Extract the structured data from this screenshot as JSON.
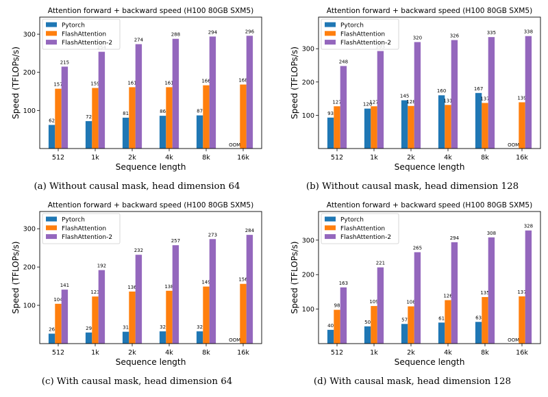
{
  "figure": {
    "series_colors": [
      "#1f77b4",
      "#ff7f0e",
      "#9467bd"
    ],
    "oom_label": "OOM"
  },
  "chart_data": [
    {
      "type": "bar",
      "title": "Attention forward + backward speed (H100 80GB SXM5)",
      "caption": "(a) Without causal mask, head dimension 64",
      "xlabel": "Sequence length",
      "ylabel": "Speed (TFLOPs/s)",
      "categories": [
        "512",
        "1k",
        "2k",
        "4k",
        "8k",
        "16k"
      ],
      "ylim": [
        0,
        345
      ],
      "yticks": [
        100,
        200,
        300
      ],
      "legend_position": "top-left",
      "series": [
        {
          "name": "Pytorch",
          "values": [
            62,
            72,
            81,
            86,
            87,
            null
          ]
        },
        {
          "name": "FlashAttention",
          "values": [
            157,
            159,
            161,
            161,
            166,
            168
          ]
        },
        {
          "name": "FlashAttention-2",
          "values": [
            215,
            254,
            274,
            288,
            294,
            296
          ]
        }
      ]
    },
    {
      "type": "bar",
      "title": "Attention forward + backward speed (H100 80GB SXM5)",
      "caption": "(b) Without causal mask, head dimension 128",
      "xlabel": "Sequence length",
      "ylabel": "Speed (TFLOPs/s)",
      "categories": [
        "512",
        "1k",
        "2k",
        "4k",
        "8k",
        "16k"
      ],
      "ylim": [
        0,
        395
      ],
      "yticks": [
        100,
        200,
        300
      ],
      "legend_position": "top-left",
      "series": [
        {
          "name": "Pytorch",
          "values": [
            93,
            120,
            145,
            160,
            167,
            null
          ]
        },
        {
          "name": "FlashAttention",
          "values": [
            127,
            127,
            128,
            131,
            137,
            139
          ]
        },
        {
          "name": "FlashAttention-2",
          "values": [
            248,
            293,
            320,
            326,
            335,
            338
          ]
        }
      ]
    },
    {
      "type": "bar",
      "title": "Attention forward + backward speed (H100 80GB SXM5)",
      "caption": "(c) With causal mask, head dimension 64",
      "xlabel": "Sequence length",
      "ylabel": "Speed (TFLOPs/s)",
      "categories": [
        "512",
        "1k",
        "2k",
        "4k",
        "8k",
        "16k"
      ],
      "ylim": [
        0,
        345
      ],
      "yticks": [
        100,
        200,
        300
      ],
      "legend_position": "top-left",
      "series": [
        {
          "name": "Pytorch",
          "values": [
            26,
            29,
            31,
            32,
            32,
            null
          ]
        },
        {
          "name": "FlashAttention",
          "values": [
            104,
            123,
            136,
            138,
            149,
            156
          ]
        },
        {
          "name": "FlashAttention-2",
          "values": [
            141,
            192,
            232,
            257,
            273,
            284
          ]
        }
      ]
    },
    {
      "type": "bar",
      "title": "Attention forward + backward speed (H100 80GB SXM5)",
      "caption": "(d) With causal mask, head dimension 128",
      "xlabel": "Sequence length",
      "ylabel": "Speed (TFLOPs/s)",
      "categories": [
        "512",
        "1k",
        "2k",
        "4k",
        "8k",
        "16k"
      ],
      "ylim": [
        0,
        383
      ],
      "yticks": [
        100,
        200,
        300
      ],
      "legend_position": "top-left",
      "series": [
        {
          "name": "Pytorch",
          "values": [
            40,
            50,
            57,
            61,
            63,
            null
          ]
        },
        {
          "name": "FlashAttention",
          "values": [
            98,
            109,
            108,
            126,
            135,
            137
          ]
        },
        {
          "name": "FlashAttention-2",
          "values": [
            163,
            221,
            265,
            294,
            308,
            328
          ]
        }
      ]
    }
  ]
}
